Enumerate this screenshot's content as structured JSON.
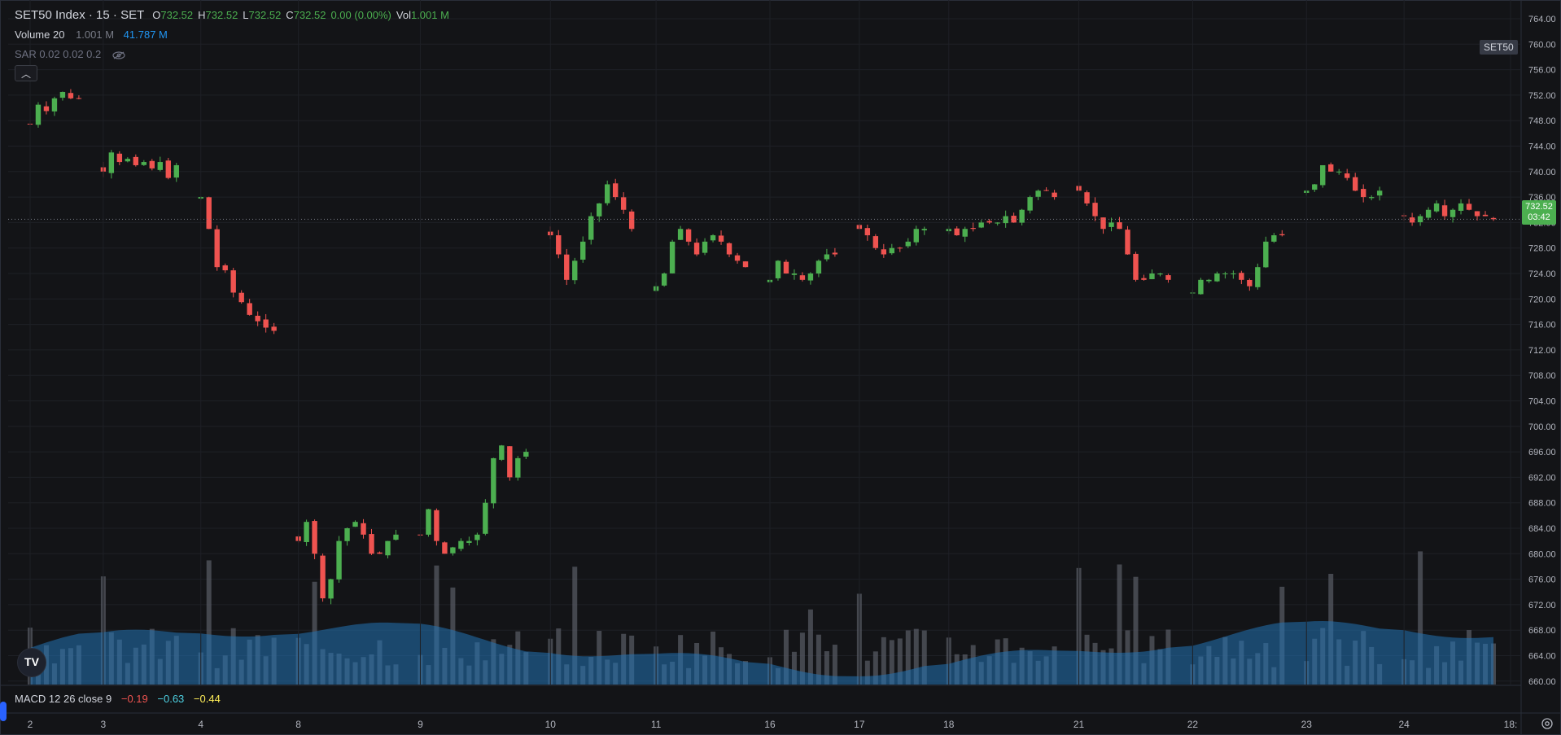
{
  "header": {
    "symbol": "SET50 Index · 15 · SET",
    "open_label": "O",
    "open": "732.52",
    "high_label": "H",
    "high": "732.52",
    "low_label": "L",
    "low": "732.52",
    "close_label": "C",
    "close": "732.52",
    "change": "0.00 (0.00%)",
    "vol_label": "Vol",
    "vol": "1.001 M"
  },
  "indicators": {
    "volume": {
      "label": "Volume 20",
      "value": "1.001 M",
      "ma": "41.787 M"
    },
    "sar": {
      "label": "SAR 0.02 0.02 0.2"
    },
    "macd": {
      "label": "MACD 12 26 close 9",
      "macd": "−0.19",
      "signal": "−0.63",
      "hist": "−0.44"
    }
  },
  "symbol_tag": "SET50",
  "last_price": {
    "price": "732.52",
    "countdown": "03:42"
  },
  "logo_text": "TV",
  "colors": {
    "up": "#4caf50",
    "down": "#ef5350",
    "volume_ma": "#2272b5",
    "volume_bar": "#5a5d66",
    "background": "#131417",
    "grid": "#1e2026"
  },
  "chart_data": {
    "type": "candlestick",
    "y_axis_ticks": [
      "764.00",
      "760.00",
      "756.00",
      "752.00",
      "748.00",
      "744.00",
      "740.00",
      "736.00",
      "732.00",
      "728.00",
      "724.00",
      "720.00",
      "716.00",
      "712.00",
      "708.00",
      "704.00",
      "700.00",
      "696.00",
      "692.00",
      "688.00",
      "684.00",
      "680.00",
      "676.00",
      "672.00",
      "668.00",
      "664.00",
      "660.00"
    ],
    "ylim": [
      658,
      765
    ],
    "x_axis_ticks": [
      "2",
      "3",
      "4",
      "8",
      "9",
      "10",
      "11",
      "16",
      "17",
      "18",
      "21",
      "22",
      "23",
      "24",
      "18:"
    ],
    "last_price": 732.52,
    "sessions": [
      {
        "day": "2",
        "path": [
          747.5,
          750.5,
          749.5,
          751.5,
          752.5,
          751.5,
          751.5
        ]
      },
      {
        "day": "3",
        "path": [
          740,
          743,
          741.5,
          742,
          741,
          741.5,
          740.5,
          741.5,
          739,
          741
        ]
      },
      {
        "day": "4",
        "path": [
          736,
          731,
          725,
          724.5,
          721,
          719.5,
          717.5,
          716.5,
          715.5,
          715
        ]
      },
      {
        "day": "8",
        "path": [
          682,
          685,
          680,
          673,
          676,
          682,
          684,
          685,
          683,
          680,
          680,
          682,
          683
        ]
      },
      {
        "day": "9",
        "path": [
          683,
          687,
          682,
          680,
          681,
          682,
          682,
          683,
          688,
          695,
          697,
          692,
          695,
          696
        ]
      },
      {
        "day": "10",
        "path": [
          730,
          727,
          723,
          726,
          729,
          733,
          735,
          738,
          736,
          734,
          731
        ]
      },
      {
        "day": "11",
        "path": [
          722,
          724,
          729,
          731,
          729,
          727,
          729,
          730,
          729,
          727,
          726,
          725
        ]
      },
      {
        "day": "16",
        "path": [
          723,
          726,
          724,
          724,
          723,
          724,
          726,
          727,
          727
        ]
      },
      {
        "day": "17",
        "path": [
          731,
          730,
          728,
          727,
          728,
          728,
          729,
          731,
          731
        ]
      },
      {
        "day": "18",
        "path": [
          731,
          730,
          731,
          731,
          732,
          732,
          732,
          733,
          732,
          734,
          736,
          737,
          737,
          736
        ]
      },
      {
        "day": "21",
        "path": [
          737,
          735,
          733,
          731,
          732,
          731,
          727,
          723,
          723,
          724,
          724,
          723
        ]
      },
      {
        "day": "22",
        "path": [
          721,
          723,
          723,
          724,
          724,
          724,
          723,
          722,
          725,
          729,
          730,
          730
        ]
      },
      {
        "day": "23",
        "path": [
          737,
          738,
          741,
          740,
          740,
          739,
          737,
          736,
          736,
          737
        ]
      },
      {
        "day": "24",
        "path": [
          733,
          732,
          733,
          734,
          735,
          733,
          734,
          735,
          734,
          733,
          733,
          732.52
        ]
      }
    ],
    "volume_note": "Volume histogram with 20-period moving average (area) along the bottom of the price pane"
  }
}
